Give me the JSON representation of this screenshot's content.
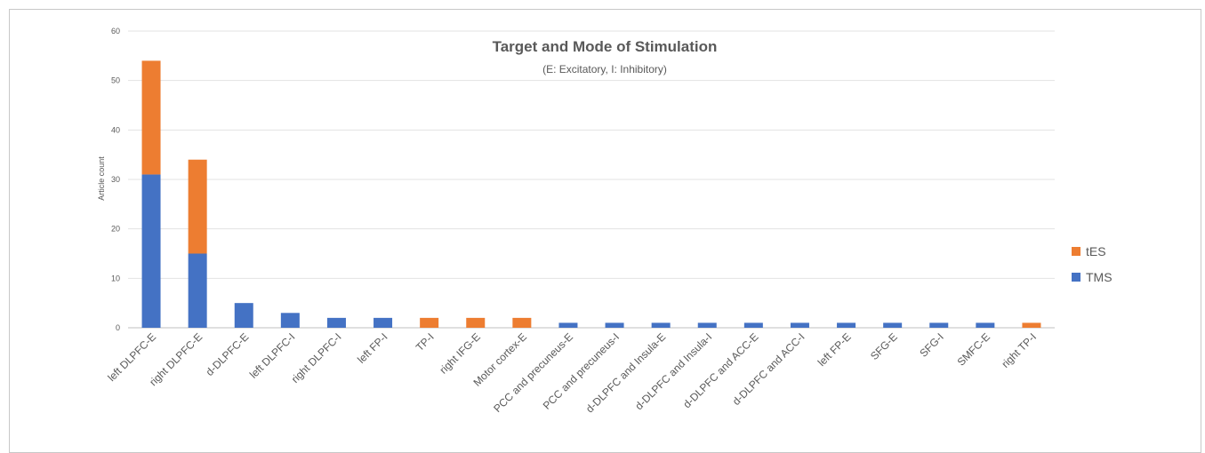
{
  "chart_data": {
    "type": "bar",
    "stacked": true,
    "title": "Target and Mode of Stimulation",
    "subtitle": "(E: Excitatory, I: Inhibitory)",
    "xlabel": "",
    "ylabel": "Article count",
    "ylim": [
      0,
      60
    ],
    "yticks": [
      0,
      10,
      20,
      30,
      40,
      50,
      60
    ],
    "grid": true,
    "legend_position": "right",
    "categories": [
      "left DLPFC-E",
      "right DLPFC-E",
      "d-DLPFC-E",
      "left DLPFC-I",
      "right DLPFC-I",
      "left FP-I",
      "TP-I",
      "right IFG-E",
      "Motor cortex-E",
      "PCC and precuneus-E",
      "PCC and precuneus-I",
      "d-DLPFC and Insula-E",
      "d-DLPFC and Insula-I",
      "d-DLPFC and ACC-E",
      "d-DLPFC and ACC-I",
      "left FP-E",
      "SFG-E",
      "SFG-I",
      "SMFC-E",
      "right TP-I"
    ],
    "series": [
      {
        "name": "TMS",
        "color": "#4472c4",
        "values": [
          31,
          15,
          5,
          3,
          2,
          2,
          0,
          0,
          0,
          1,
          1,
          1,
          1,
          1,
          1,
          1,
          1,
          1,
          1,
          0
        ]
      },
      {
        "name": "tES",
        "color": "#ed7d31",
        "values": [
          23,
          19,
          0,
          0,
          0,
          0,
          2,
          2,
          2,
          0,
          0,
          0,
          0,
          0,
          0,
          0,
          0,
          0,
          0,
          1
        ]
      }
    ],
    "legend": [
      {
        "name": "tES",
        "color": "#ed7d31"
      },
      {
        "name": "TMS",
        "color": "#4472c4"
      }
    ]
  }
}
